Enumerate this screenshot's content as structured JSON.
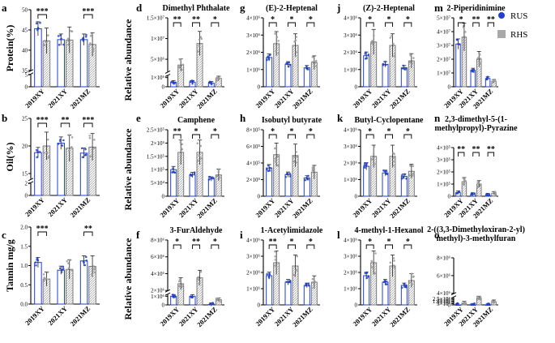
{
  "legend": {
    "rus_label": "RUS",
    "rhs_label": "RHS",
    "rus_color": "#1f3fcf",
    "rhs_color": "#a9a9a9"
  },
  "y_axis_labels": {
    "row1": "Relative abundance",
    "row2": "Relative abundance",
    "row3": "Relative abundance"
  },
  "chart_data": [
    {
      "panel": "a",
      "type": "bar",
      "title": "",
      "ylabel": "Protein(%)",
      "categories": [
        "2019XY",
        "2021XY",
        "2021MZ"
      ],
      "ylim": [
        0,
        50
      ],
      "axis_break": [
        5,
        35
      ],
      "yticks": [
        {
          "v": 0,
          "t": "0"
        },
        {
          "v": 5,
          "t": "5"
        },
        {
          "v": 35,
          "t": "35"
        },
        {
          "v": 40,
          "t": "40"
        },
        {
          "v": 45,
          "t": "45"
        },
        {
          "v": 50,
          "t": "50"
        }
      ],
      "series": [
        {
          "name": "RUS",
          "values": [
            45.3,
            42.6,
            42.6
          ]
        },
        {
          "name": "RHS",
          "values": [
            42.3,
            42.5,
            41.4
          ]
        }
      ],
      "significance": [
        "***",
        "",
        "***"
      ]
    },
    {
      "panel": "b",
      "type": "bar",
      "title": "",
      "ylabel": "Oil(%)",
      "categories": [
        "2019XY",
        "2021XY",
        "2021MZ"
      ],
      "ylim": [
        0,
        25
      ],
      "axis_break": [
        2,
        14
      ],
      "yticks": [
        {
          "v": 0,
          "t": "0"
        },
        {
          "v": 2,
          "t": "2"
        },
        {
          "v": 15,
          "t": "15"
        },
        {
          "v": 20,
          "t": "20"
        },
        {
          "v": 25,
          "t": "25"
        }
      ],
      "series": [
        {
          "name": "RUS",
          "values": [
            18.8,
            20.5,
            18.7
          ]
        },
        {
          "name": "RHS",
          "values": [
            20.0,
            19.6,
            19.8
          ]
        }
      ],
      "significance": [
        "***",
        "**",
        "***"
      ]
    },
    {
      "panel": "c",
      "type": "bar",
      "title": "",
      "ylabel": "Tannin mg/g",
      "categories": [
        "2019XY",
        "2021XY",
        "2021MZ"
      ],
      "ylim": [
        0,
        2.0
      ],
      "yticks": [
        {
          "v": 0,
          "t": "0.0"
        },
        {
          "v": 0.5,
          "t": "0.5"
        },
        {
          "v": 1.0,
          "t": "1.0"
        },
        {
          "v": 1.5,
          "t": "1.5"
        },
        {
          "v": 2.0,
          "t": "2.0"
        }
      ],
      "series": [
        {
          "name": "RUS",
          "values": [
            1.08,
            0.88,
            1.12
          ]
        },
        {
          "name": "RHS",
          "values": [
            0.65,
            0.9,
            0.98
          ]
        }
      ],
      "significance": [
        "***",
        "",
        "**"
      ]
    },
    {
      "panel": "d",
      "type": "bar",
      "title": "Dimethyl Phthalate",
      "categories": [
        "2019XY",
        "2021XY",
        "2021MZ"
      ],
      "ylim": [
        0,
        15000000
      ],
      "axis_break": [
        1200000,
        2000000
      ],
      "yticks": [
        {
          "v": 0,
          "t": "0"
        },
        {
          "v": 1000000,
          "t": "1×10⁶"
        },
        {
          "v": 5000000,
          "t": "5×10⁶"
        },
        {
          "v": 10000000,
          "t": "1×10⁷"
        },
        {
          "v": 15000000,
          "t": "1.5×10⁷"
        }
      ],
      "series": [
        {
          "name": "RUS",
          "values": [
            500000,
            500000,
            400000
          ]
        },
        {
          "name": "RHS",
          "values": [
            3600000,
            8800000,
            900000
          ]
        }
      ],
      "significance": [
        "**",
        "**",
        "*"
      ]
    },
    {
      "panel": "g",
      "type": "bar",
      "title": "(E)-2-Heptenal",
      "categories": [
        "2019XY",
        "2021XY",
        "2021MZ"
      ],
      "ylim": [
        0,
        4000000
      ],
      "yticks": [
        {
          "v": 0,
          "t": "0"
        },
        {
          "v": 1000000,
          "t": "1×10⁶"
        },
        {
          "v": 2000000,
          "t": "2×10⁶"
        },
        {
          "v": 3000000,
          "t": "3×10⁶"
        },
        {
          "v": 4000000,
          "t": "4×10⁶"
        }
      ],
      "series": [
        {
          "name": "RUS",
          "values": [
            1700000,
            1300000,
            1100000
          ]
        },
        {
          "name": "RHS",
          "values": [
            2500000,
            2400000,
            1400000
          ]
        }
      ],
      "significance": [
        "*",
        "*",
        "*"
      ]
    },
    {
      "panel": "j",
      "type": "bar",
      "title": "(Z)-2-Heptenal",
      "categories": [
        "2019XY",
        "2021XY",
        "2021MZ"
      ],
      "ylim": [
        0,
        4000000
      ],
      "yticks": [
        {
          "v": 0,
          "t": "0"
        },
        {
          "v": 1000000,
          "t": "1×10⁶"
        },
        {
          "v": 2000000,
          "t": "2×10⁶"
        },
        {
          "v": 3000000,
          "t": "3×10⁶"
        },
        {
          "v": 4000000,
          "t": "4×10⁶"
        }
      ],
      "series": [
        {
          "name": "RUS",
          "values": [
            1800000,
            1300000,
            1100000
          ]
        },
        {
          "name": "RHS",
          "values": [
            2600000,
            2400000,
            1500000
          ]
        }
      ],
      "significance": [
        "*",
        "*",
        "*"
      ]
    },
    {
      "panel": "m",
      "type": "bar",
      "title": "2-Piperidinimine",
      "categories": [
        "2019XY",
        "2021XY",
        "2021MZ"
      ],
      "ylim": [
        0,
        50000000
      ],
      "yticks": [
        {
          "v": 0,
          "t": "0"
        },
        {
          "v": 10000000,
          "t": "1×10⁷"
        },
        {
          "v": 20000000,
          "t": "2×10⁷"
        },
        {
          "v": 30000000,
          "t": "3×10⁷"
        },
        {
          "v": 40000000,
          "t": "4×10⁷"
        },
        {
          "v": 50000000,
          "t": "5×10⁷"
        }
      ],
      "series": [
        {
          "name": "RUS",
          "values": [
            31000000,
            12000000,
            6000000
          ]
        },
        {
          "name": "RHS",
          "values": [
            36000000,
            20000000,
            4000000
          ]
        }
      ],
      "significance": [
        "*",
        "**",
        "**"
      ]
    },
    {
      "panel": "e",
      "type": "bar",
      "title": "Camphene",
      "categories": [
        "2019XY",
        "2021XY",
        "2021MZ"
      ],
      "ylim": [
        0,
        250000
      ],
      "yticks": [
        {
          "v": 0,
          "t": "0"
        },
        {
          "v": 50000,
          "t": "5×10⁴"
        },
        {
          "v": 100000,
          "t": "1×10⁵"
        },
        {
          "v": 150000,
          "t": "1.5×10⁵"
        },
        {
          "v": 200000,
          "t": "2×10⁵"
        },
        {
          "v": 250000,
          "t": "2.5×10⁵"
        }
      ],
      "series": [
        {
          "name": "RUS",
          "values": [
            100000,
            80000,
            65000
          ]
        },
        {
          "name": "RHS",
          "values": [
            165000,
            165000,
            80000
          ]
        }
      ],
      "significance": [
        "**",
        "*",
        "*"
      ]
    },
    {
      "panel": "h",
      "type": "bar",
      "title": "Isobutyl butyrate",
      "categories": [
        "2019XY",
        "2021XY",
        "2021MZ"
      ],
      "ylim": [
        0,
        800000
      ],
      "yticks": [
        {
          "v": 0,
          "t": "0"
        },
        {
          "v": 200000,
          "t": "2×10⁵"
        },
        {
          "v": 400000,
          "t": "4×10⁵"
        },
        {
          "v": 600000,
          "t": "6×10⁵"
        },
        {
          "v": 800000,
          "t": "8×10⁵"
        }
      ],
      "series": [
        {
          "name": "RUS",
          "values": [
            340000,
            260000,
            220000
          ]
        },
        {
          "name": "RHS",
          "values": [
            500000,
            490000,
            290000
          ]
        }
      ],
      "significance": [
        "*",
        "*",
        "*"
      ]
    },
    {
      "panel": "k",
      "type": "bar",
      "title": "Butyl-Cyclopentane",
      "categories": [
        "2019XY",
        "2021XY",
        "2021MZ"
      ],
      "ylim": [
        0,
        4000000
      ],
      "yticks": [
        {
          "v": 0,
          "t": "0"
        },
        {
          "v": 1000000,
          "t": "1×10⁶"
        },
        {
          "v": 2000000,
          "t": "2×10⁶"
        },
        {
          "v": 3000000,
          "t": "3×10⁶"
        },
        {
          "v": 4000000,
          "t": "4×10⁶"
        }
      ],
      "series": [
        {
          "name": "RUS",
          "values": [
            1800000,
            1400000,
            1200000
          ]
        },
        {
          "name": "RHS",
          "values": [
            2400000,
            2400000,
            1500000
          ]
        }
      ],
      "significance": [
        "*",
        "*",
        "*"
      ]
    },
    {
      "panel": "n",
      "type": "bar",
      "title": "2,3-dimethyl-5-(1-methylpropyl)-Pyrazine",
      "categories": [
        "2019XY",
        "2021XY",
        "2021MZ"
      ],
      "ylim": [
        0,
        400000
      ],
      "yticks": [
        {
          "v": 0,
          "t": "0"
        },
        {
          "v": 100000,
          "t": "1×10⁵"
        },
        {
          "v": 200000,
          "t": "2×10⁵"
        },
        {
          "v": 300000,
          "t": "3×10⁵"
        },
        {
          "v": 400000,
          "t": "4×10⁵"
        }
      ],
      "series": [
        {
          "name": "RUS",
          "values": [
            30000,
            15000,
            10000
          ]
        },
        {
          "name": "RHS",
          "values": [
            120000,
            100000,
            25000
          ]
        }
      ],
      "significance": [
        "**",
        "**",
        "**"
      ]
    },
    {
      "panel": "f",
      "type": "bar",
      "title": "3-FurAldehyde",
      "categories": [
        "2019XY",
        "2021XY",
        "2021MZ"
      ],
      "ylim": [
        0,
        8000000
      ],
      "axis_break": [
        1200000,
        2000000
      ],
      "yticks": [
        {
          "v": 0,
          "t": "0"
        },
        {
          "v": 1000000,
          "t": "1×10⁶"
        },
        {
          "v": 2000000,
          "t": "2×10⁶"
        },
        {
          "v": 4000000,
          "t": "4×10⁶"
        },
        {
          "v": 6000000,
          "t": "6×10⁶"
        },
        {
          "v": 8000000,
          "t": "8×10⁶"
        }
      ],
      "series": [
        {
          "name": "RUS",
          "values": [
            1000000,
            1000000,
            50000
          ]
        },
        {
          "name": "RHS",
          "values": [
            2800000,
            3500000,
            600000
          ]
        }
      ],
      "significance": [
        "*",
        "**",
        "*"
      ]
    },
    {
      "panel": "i",
      "type": "bar",
      "title": "1-Acetylimidazole",
      "categories": [
        "2019XY",
        "2021XY",
        "2021MZ"
      ],
      "ylim": [
        0,
        4000000
      ],
      "yticks": [
        {
          "v": 0,
          "t": "0"
        },
        {
          "v": 1000000,
          "t": "1×10⁶"
        },
        {
          "v": 2000000,
          "t": "2×10⁶"
        },
        {
          "v": 3000000,
          "t": "3×10⁶"
        },
        {
          "v": 4000000,
          "t": "4×10⁶"
        }
      ],
      "series": [
        {
          "name": "RUS",
          "values": [
            1800000,
            1400000,
            1200000
          ]
        },
        {
          "name": "RHS",
          "values": [
            2600000,
            2400000,
            1400000
          ]
        }
      ],
      "significance": [
        "**",
        "*",
        "*"
      ]
    },
    {
      "panel": "l",
      "type": "bar",
      "title": "4-methyl-1-Hexanol",
      "categories": [
        "2019XY",
        "2021XY",
        "2021MZ"
      ],
      "ylim": [
        0,
        4000000
      ],
      "yticks": [
        {
          "v": 0,
          "t": "0"
        },
        {
          "v": 1000000,
          "t": "1×10⁶"
        },
        {
          "v": 2000000,
          "t": "2×10⁶"
        },
        {
          "v": 3000000,
          "t": "3×10⁶"
        },
        {
          "v": 4000000,
          "t": "4×10⁶"
        }
      ],
      "series": [
        {
          "name": "RUS",
          "values": [
            1800000,
            1400000,
            1200000
          ]
        },
        {
          "name": "RHS",
          "values": [
            2600000,
            2400000,
            1500000
          ]
        }
      ],
      "significance": [
        "*",
        "*",
        "*"
      ]
    },
    {
      "panel": "o",
      "type": "bar",
      "title": "2-((3,3-Dimethyloxiran-2-yl)methyl)-3-methylfuran",
      "categories": [
        "2019XY",
        "2021XY",
        "2021MZ"
      ],
      "ylim": [
        0,
        8000000
      ],
      "axis_break": [
        3000000,
        4000000
      ],
      "yticks": [
        {
          "v": 0,
          "t": "0"
        },
        {
          "v": 500000,
          "t": "5×10⁵"
        },
        {
          "v": 1000000,
          "t": "1×10⁶"
        },
        {
          "v": 1500000,
          "t": "1.5×10⁶"
        },
        {
          "v": 2000000,
          "t": "2×10⁶"
        },
        {
          "v": 2500000,
          "t": "2.5×10⁶"
        },
        {
          "v": 4000000,
          "t": "4×10⁶"
        },
        {
          "v": 6000000,
          "t": "6×10⁶"
        },
        {
          "v": 8000000,
          "t": "8×10⁶"
        }
      ],
      "series": [
        {
          "name": "RUS",
          "values": [
            0,
            0,
            0
          ]
        },
        {
          "name": "RHS",
          "values": [
            800000,
            2700000,
            1300000
          ]
        }
      ],
      "significance": [
        "",
        "",
        ""
      ]
    }
  ]
}
